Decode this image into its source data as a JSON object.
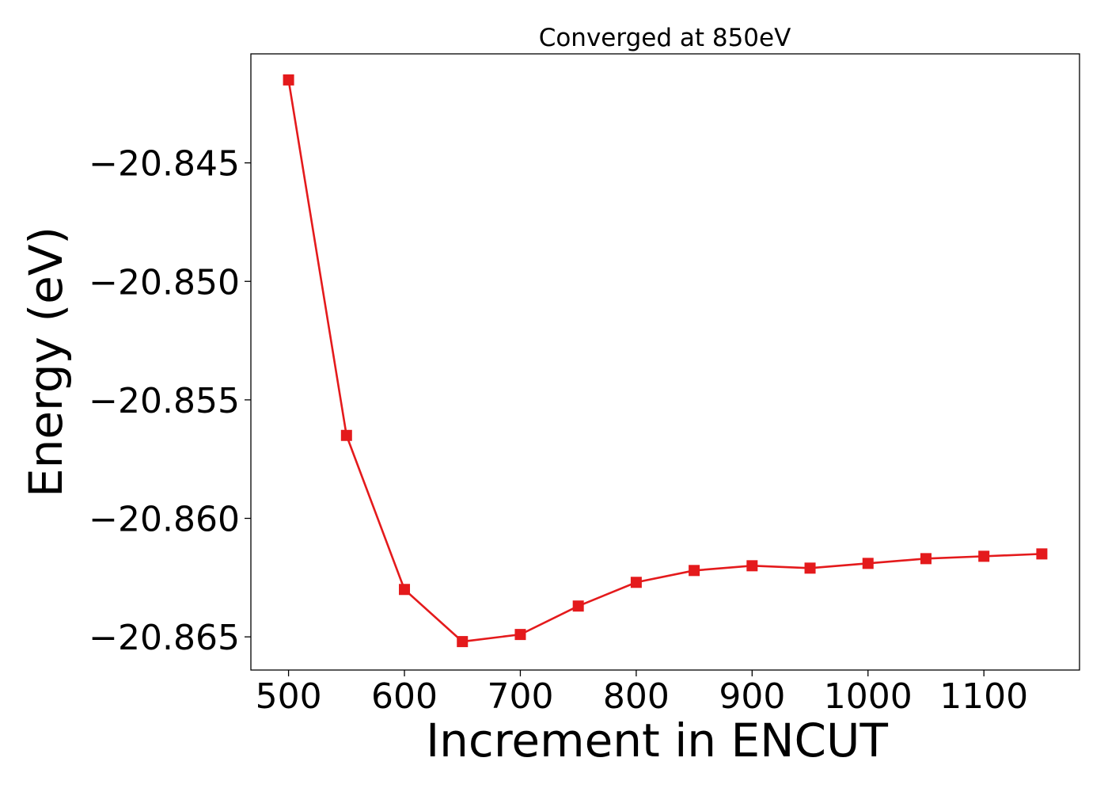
{
  "chart_data": {
    "type": "line",
    "title": "Converged at 850eV",
    "xlabel": "Increment in ENCUT",
    "ylabel": "Energy (eV)",
    "x": [
      500,
      550,
      600,
      650,
      700,
      750,
      800,
      850,
      900,
      950,
      1000,
      1050,
      1100,
      1150
    ],
    "series": [
      {
        "values": [
          -20.8415,
          -20.8565,
          -20.863,
          -20.8652,
          -20.8649,
          -20.8637,
          -20.8627,
          -20.8622,
          -20.862,
          -20.8621,
          -20.8619,
          -20.8617,
          -20.8616,
          -20.8615
        ],
        "color": "#e41a1c",
        "marker": "square"
      }
    ],
    "xticks": [
      500,
      600,
      700,
      800,
      900,
      1000,
      1100
    ],
    "xtick_labels": [
      "500",
      "600",
      "700",
      "800",
      "900",
      "1000",
      "1100"
    ],
    "yticks": [
      -20.845,
      -20.85,
      -20.855,
      -20.86,
      -20.865
    ],
    "ytick_labels": [
      "−20.845",
      "−20.850",
      "−20.855",
      "−20.860",
      "−20.865"
    ],
    "xlim": [
      467.5,
      1182.5
    ],
    "ylim": [
      -20.8664,
      -20.8404
    ],
    "grid": false,
    "legend": "none"
  }
}
